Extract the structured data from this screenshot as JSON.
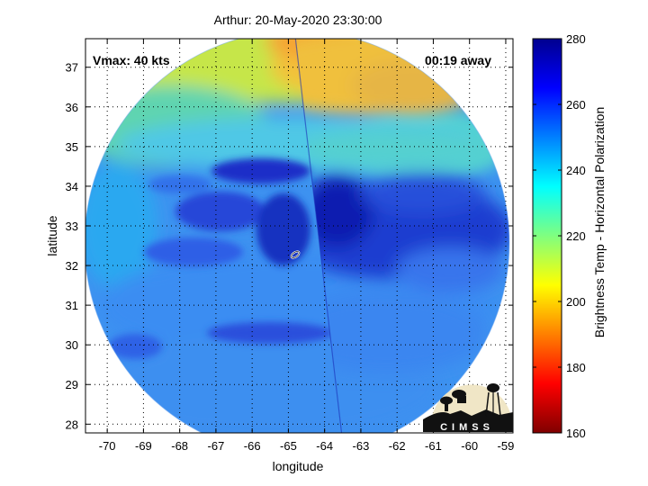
{
  "chart_data": {
    "type": "heatmap",
    "title": "Arthur: 20-May-2020 23:30:00",
    "xlabel": "longitude",
    "ylabel": "latitude",
    "xlim": [
      -70.6,
      -58.8
    ],
    "ylim": [
      27.78,
      37.72
    ],
    "x_ticks": [
      -70,
      -69,
      -68,
      -67,
      -66,
      -65,
      -64,
      -63,
      -62,
      -61,
      -60,
      -59
    ],
    "y_ticks": [
      28,
      29,
      30,
      31,
      32,
      33,
      34,
      35,
      36,
      37
    ],
    "grid": "dotted",
    "annotations": {
      "vmax": "Vmax: 40 kts",
      "time_offset": "00:19 away"
    },
    "storm_center": {
      "lon": -64.6,
      "lat": 32.1
    },
    "colorbar": {
      "label": "Brightness Temp - Horizontal Polarization",
      "min": 160,
      "max": 280,
      "ticks": [
        160,
        180,
        200,
        220,
        240,
        260,
        280
      ],
      "colormap": "jet"
    },
    "field_summary": [
      {
        "region": "northern edge (lat 36-37.7)",
        "value_range": [
          205,
          235
        ]
      },
      {
        "region": "lat 34-36",
        "value_range": [
          228,
          245
        ]
      },
      {
        "region": "central dark band near center (lat 31.5-34)",
        "value_range": [
          255,
          272
        ]
      },
      {
        "region": "south (lat 28-31)",
        "value_range": [
          245,
          258
        ]
      }
    ]
  },
  "logo": {
    "text": "CIMSS"
  }
}
